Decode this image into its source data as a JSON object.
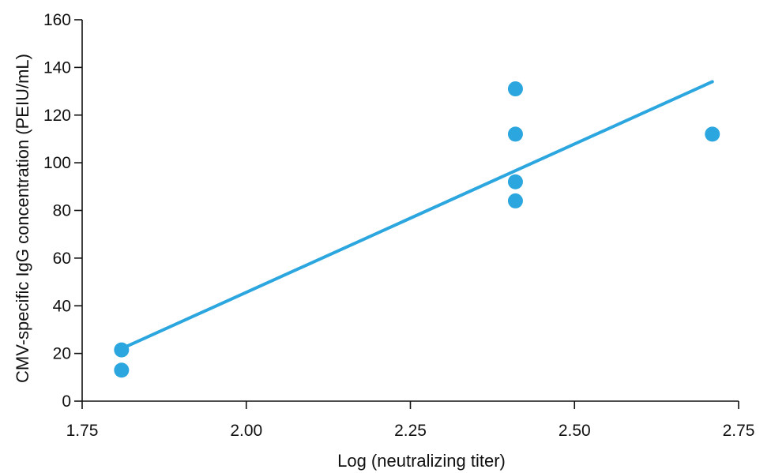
{
  "chart_data": {
    "type": "scatter",
    "xlabel": "Log (neutralizing titer)",
    "ylabel": "CMV-specific IgG concentration (PEIU/mL)",
    "xlim": [
      1.75,
      2.75
    ],
    "ylim": [
      0,
      160
    ],
    "x_ticks": [
      1.75,
      2.0,
      2.25,
      2.5,
      2.75
    ],
    "x_tick_labels": [
      "1.75",
      "2.00",
      "2.25",
      "2.50",
      "2.75"
    ],
    "y_ticks": [
      0,
      20,
      40,
      60,
      80,
      100,
      120,
      140,
      160
    ],
    "y_tick_labels": [
      "0",
      "20",
      "40",
      "60",
      "80",
      "100",
      "120",
      "140",
      "160"
    ],
    "grid": false,
    "series": [
      {
        "type": "scatter",
        "points": [
          {
            "x": 1.81,
            "y": 21.5
          },
          {
            "x": 1.81,
            "y": 13
          },
          {
            "x": 2.41,
            "y": 131
          },
          {
            "x": 2.41,
            "y": 112
          },
          {
            "x": 2.41,
            "y": 92
          },
          {
            "x": 2.41,
            "y": 84
          },
          {
            "x": 2.71,
            "y": 112
          }
        ]
      },
      {
        "type": "line",
        "points": [
          {
            "x": 1.81,
            "y": 22
          },
          {
            "x": 2.71,
            "y": 134
          }
        ]
      }
    ],
    "colors": {
      "marker": "#2BA6DE",
      "trend_line": "#2BA6DE",
      "axis": "#111111"
    }
  }
}
